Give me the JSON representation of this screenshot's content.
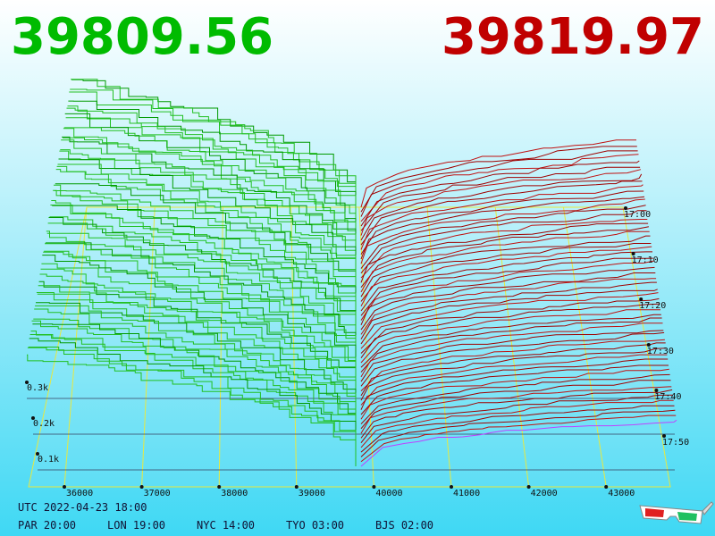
{
  "header": {
    "bid": "39809.56",
    "ask": "39819.97"
  },
  "axis": {
    "price_labels": [
      "36000",
      "37000",
      "38000",
      "39000",
      "40000",
      "41000",
      "42000",
      "43000"
    ],
    "volume_labels": [
      "0.3k",
      "0.2k",
      "0.1k"
    ],
    "time_labels": [
      "17:00",
      "17:10",
      "17:20",
      "17:30",
      "17:40",
      "17:50"
    ]
  },
  "footer": {
    "utc": "UTC 2022-04-23 18:00",
    "zones": [
      "PAR 20:00",
      "LON 19:00",
      "NYC 14:00",
      "TYO 03:00",
      "BJS 02:00"
    ]
  }
}
